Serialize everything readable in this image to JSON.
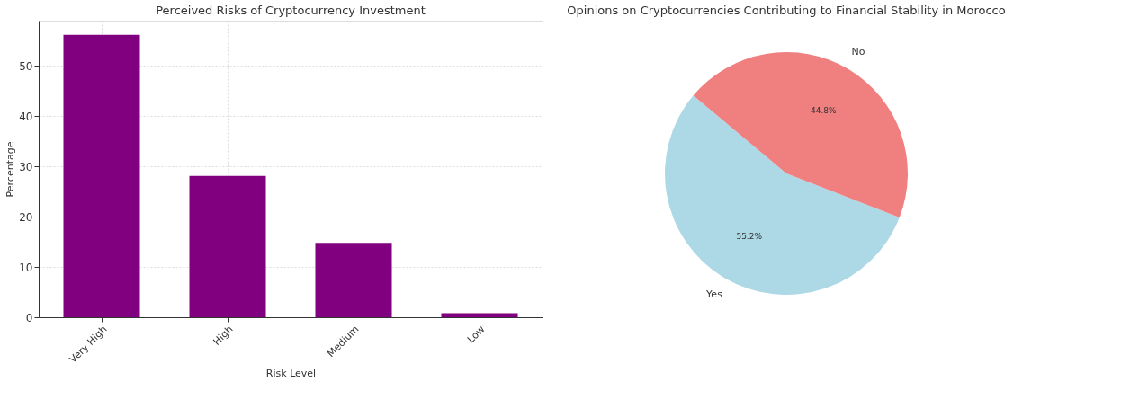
{
  "chart_data": [
    {
      "type": "bar",
      "title": "Perceived Risks of Cryptocurrency Investment",
      "xlabel": "Risk Level",
      "ylabel": "Percentage",
      "categories": [
        "Very High",
        "High",
        "Medium",
        "Low"
      ],
      "values": [
        56.2,
        28.1,
        14.8,
        0.8
      ],
      "color": "#800080",
      "ylim": [
        0,
        59
      ],
      "yticks": [
        0,
        10,
        20,
        30,
        40,
        50
      ],
      "grid": true
    },
    {
      "type": "pie",
      "title": "Opinions on Cryptocurrencies Contributing to Financial Stability in Morocco",
      "categories": [
        "Yes",
        "No"
      ],
      "values": [
        55.2,
        44.8
      ],
      "colors": [
        "#add8e6",
        "#f08080"
      ],
      "value_labels": [
        "55.2%",
        "44.8%"
      ]
    }
  ]
}
